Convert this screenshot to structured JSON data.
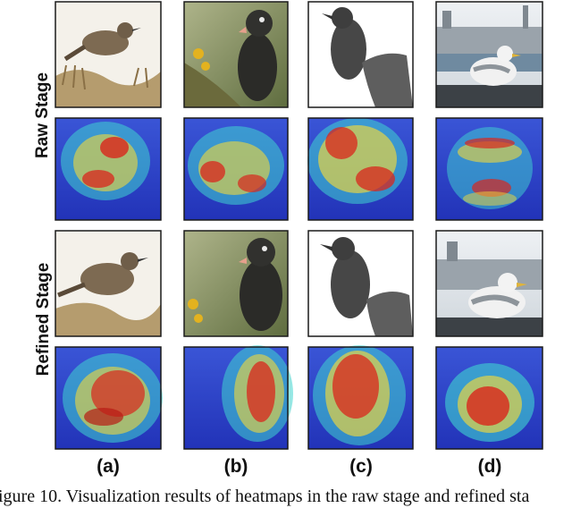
{
  "row_labels": {
    "raw": "Raw Stage",
    "refined": "Refined Stage"
  },
  "column_labels": [
    "(a)",
    "(b)",
    "(c)",
    "(d)"
  ],
  "caption": "igure 10.  Visualization results of heatmaps in the raw stage and refined sta",
  "heatmap_colors": {
    "low": "#2a3fcf",
    "mid": "#3fd6d0",
    "warm": "#f2d83a",
    "hot": "#d9261c"
  }
}
